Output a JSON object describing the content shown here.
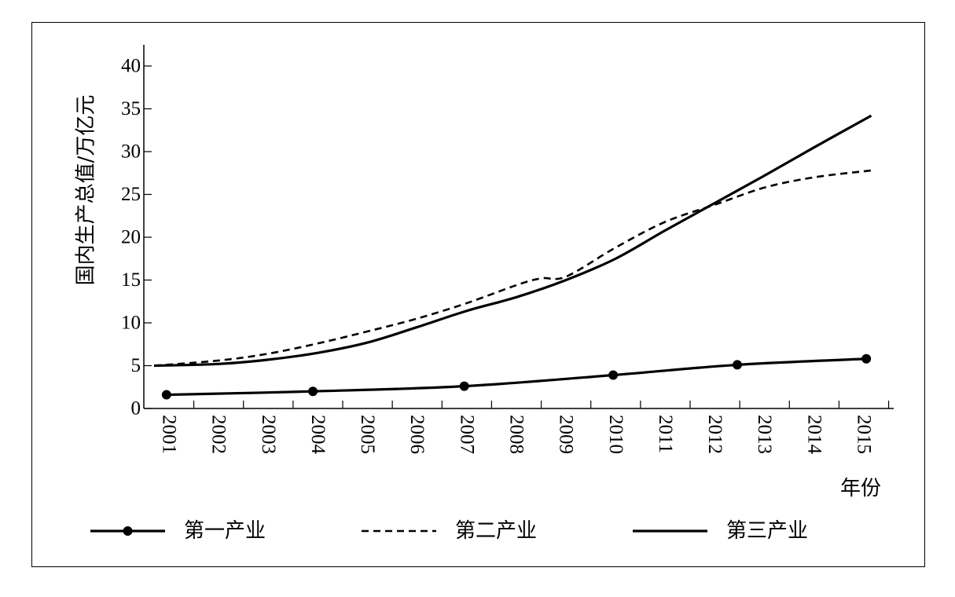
{
  "chart_data": {
    "type": "line",
    "title": "",
    "xlabel": "年份",
    "ylabel": "国内生产总值/万亿元",
    "ylim": [
      0,
      40
    ],
    "y_ticks": [
      "0",
      "5",
      "10",
      "15",
      "20",
      "25",
      "30",
      "35",
      "40"
    ],
    "categories": [
      "2001",
      "2002",
      "2003",
      "2004",
      "2005",
      "2006",
      "2007",
      "2008",
      "2009",
      "2010",
      "2011",
      "2012",
      "2013",
      "2014",
      "2015"
    ],
    "legend_position": "bottom",
    "series": [
      {
        "name": "第一产业",
        "style": "solid-markers",
        "color": "#000000",
        "x": [
          2000.95,
          2003.9,
          2006.95,
          2009.95,
          2012.45,
          2015.05
        ],
        "y": [
          1.6,
          2.0,
          2.6,
          3.9,
          5.1,
          5.8
        ]
      },
      {
        "name": "第二产业",
        "style": "dashed",
        "color": "#000000",
        "x": [
          2000.7,
          2002,
          2003,
          2004,
          2005,
          2006,
          2007,
          2008,
          2008.5,
          2009,
          2010,
          2011,
          2012,
          2013,
          2014,
          2015.15
        ],
        "y": [
          5.0,
          5.6,
          6.4,
          7.6,
          9.0,
          10.5,
          12.3,
          14.4,
          15.2,
          15.4,
          18.8,
          21.8,
          23.8,
          25.8,
          27.0,
          27.8
        ]
      },
      {
        "name": "第三产业",
        "style": "solid",
        "color": "#000000",
        "x": [
          2000.7,
          2002,
          2003,
          2004,
          2005,
          2006,
          2007,
          2008,
          2009,
          2010,
          2011,
          2012,
          2013,
          2014,
          2015.15
        ],
        "y": [
          5.0,
          5.2,
          5.7,
          6.5,
          7.7,
          9.5,
          11.4,
          13.0,
          15.0,
          17.5,
          20.8,
          24.0,
          27.2,
          30.5,
          34.2
        ]
      }
    ]
  }
}
